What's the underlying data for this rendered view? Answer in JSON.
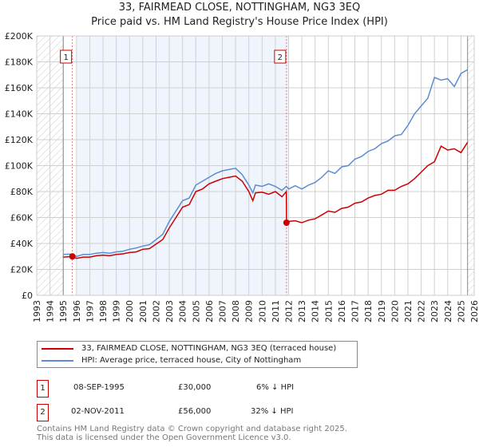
{
  "chart_data": {
    "type": "line",
    "title": "33, FAIRMEAD CLOSE, NOTTINGHAM, NG3 3EQ",
    "subtitle": "Price paid vs. HM Land Registry's House Price Index (HPI)",
    "xlim": [
      1993,
      2026
    ],
    "ylim": [
      0,
      200000
    ],
    "x_ticks": [
      "1993",
      "1994",
      "1995",
      "1996",
      "1997",
      "1998",
      "1999",
      "2000",
      "2001",
      "2002",
      "2003",
      "2004",
      "2005",
      "2006",
      "2007",
      "2008",
      "2009",
      "2010",
      "2011",
      "2012",
      "2013",
      "2014",
      "2015",
      "2016",
      "2017",
      "2018",
      "2019",
      "2020",
      "2021",
      "2022",
      "2023",
      "2024",
      "2025",
      "2026"
    ],
    "y_ticks": [
      {
        "v": 0,
        "label": "£0"
      },
      {
        "v": 20000,
        "label": "£20K"
      },
      {
        "v": 40000,
        "label": "£40K"
      },
      {
        "v": 60000,
        "label": "£60K"
      },
      {
        "v": 80000,
        "label": "£80K"
      },
      {
        "v": 100000,
        "label": "£100K"
      },
      {
        "v": 120000,
        "label": "£120K"
      },
      {
        "v": 140000,
        "label": "£140K"
      },
      {
        "v": 160000,
        "label": "£160K"
      },
      {
        "v": 180000,
        "label": "£180K"
      },
      {
        "v": 200000,
        "label": "£200K"
      }
    ],
    "grid": true,
    "series": [
      {
        "name": "33, FAIRMEAD CLOSE, NOTTINGHAM, NG3 3EQ (terraced house)",
        "color": "#cc0000",
        "x": [
          1995,
          1995.69,
          1996,
          1996.5,
          1997,
          1997.5,
          1998,
          1998.5,
          1999,
          1999.5,
          2000,
          2000.5,
          2001,
          2001.5,
          2002,
          2002.5,
          2003,
          2003.5,
          2004,
          2004.5,
          2005,
          2005.5,
          2006,
          2006.5,
          2007,
          2007.5,
          2008,
          2008.5,
          2009,
          2009.3,
          2009.5,
          2010,
          2010.5,
          2011,
          2011.5,
          2011.83,
          2011.84,
          2012,
          2012.5,
          2013,
          2013.5,
          2014,
          2014.5,
          2015,
          2015.5,
          2016,
          2016.5,
          2017,
          2017.5,
          2018,
          2018.5,
          2019,
          2019.5,
          2020,
          2020.5,
          2021,
          2021.5,
          2022,
          2022.5,
          2023,
          2023.5,
          2024,
          2024.5,
          2025,
          2025.5
        ],
        "y": [
          29500,
          30000,
          28500,
          29500,
          29500,
          30500,
          31000,
          30500,
          31500,
          32000,
          33000,
          33500,
          35500,
          36000,
          39500,
          43000,
          52000,
          60000,
          68000,
          70000,
          80000,
          82000,
          86000,
          88000,
          90000,
          91000,
          92000,
          88000,
          80000,
          73000,
          79000,
          79500,
          78000,
          80000,
          76000,
          80000,
          56000,
          57000,
          57500,
          56000,
          58000,
          59000,
          62000,
          65000,
          64000,
          67000,
          68000,
          71000,
          72000,
          75000,
          77000,
          78000,
          81000,
          81000,
          84000,
          86000,
          90000,
          95000,
          100000,
          103000,
          115000,
          112000,
          113000,
          110000,
          118000
        ],
        "sales": [
          {
            "x": 1995.69,
            "y": 30000
          },
          {
            "x": 2011.84,
            "y": 56000
          }
        ]
      },
      {
        "name": "HPI: Average price, terraced house, City of Nottingham",
        "color": "#5b8dd0",
        "x": [
          1995,
          1995.69,
          1996,
          1996.5,
          1997,
          1997.5,
          1998,
          1998.5,
          1999,
          1999.5,
          2000,
          2000.5,
          2001,
          2001.5,
          2002,
          2002.5,
          2003,
          2003.5,
          2004,
          2004.5,
          2005,
          2005.5,
          2006,
          2006.5,
          2007,
          2007.5,
          2008,
          2008.5,
          2009,
          2009.3,
          2009.5,
          2010,
          2010.5,
          2011,
          2011.5,
          2011.83,
          2012,
          2012.5,
          2013,
          2013.5,
          2014,
          2014.5,
          2015,
          2015.5,
          2016,
          2016.5,
          2017,
          2017.5,
          2018,
          2018.5,
          2019,
          2019.5,
          2020,
          2020.5,
          2021,
          2021.5,
          2022,
          2022.5,
          2023,
          2023.5,
          2024,
          2024.5,
          2025,
          2025.5
        ],
        "y": [
          31500,
          31800,
          30000,
          31500,
          31500,
          32500,
          33000,
          32500,
          33500,
          34000,
          35500,
          36500,
          38000,
          39000,
          43000,
          47000,
          57000,
          65000,
          73000,
          75000,
          85000,
          88000,
          91000,
          94000,
          96000,
          97000,
          98000,
          93000,
          85000,
          79000,
          85000,
          84000,
          86000,
          84000,
          81000,
          84000,
          82000,
          84500,
          82000,
          85000,
          87000,
          91000,
          96000,
          94000,
          99000,
          100000,
          105000,
          107000,
          111000,
          113000,
          117000,
          119000,
          123000,
          124000,
          131000,
          140000,
          146000,
          152000,
          168000,
          166000,
          167000,
          161000,
          171000,
          174000
        ]
      }
    ],
    "shaded_range": [
      1996,
      2012
    ],
    "hatched_ranges": [
      [
        1993,
        1995
      ],
      [
        2025.5,
        2026
      ]
    ],
    "markers": [
      {
        "label": "1",
        "x": 1995.69
      },
      {
        "label": "2",
        "x": 2011.84
      }
    ]
  },
  "legend": {
    "red": "33, FAIRMEAD CLOSE, NOTTINGHAM, NG3 3EQ (terraced house)",
    "blue": "HPI: Average price, terraced house, City of Nottingham"
  },
  "transactions": [
    {
      "num": "1",
      "date": "08-SEP-1995",
      "price": "£30,000",
      "hpi": "6% ↓ HPI"
    },
    {
      "num": "2",
      "date": "02-NOV-2011",
      "price": "£56,000",
      "hpi": "32% ↓ HPI"
    }
  ],
  "footer": {
    "line1": "Contains HM Land Registry data © Crown copyright and database right 2025.",
    "line2": "This data is licensed under the Open Government Licence v3.0."
  }
}
